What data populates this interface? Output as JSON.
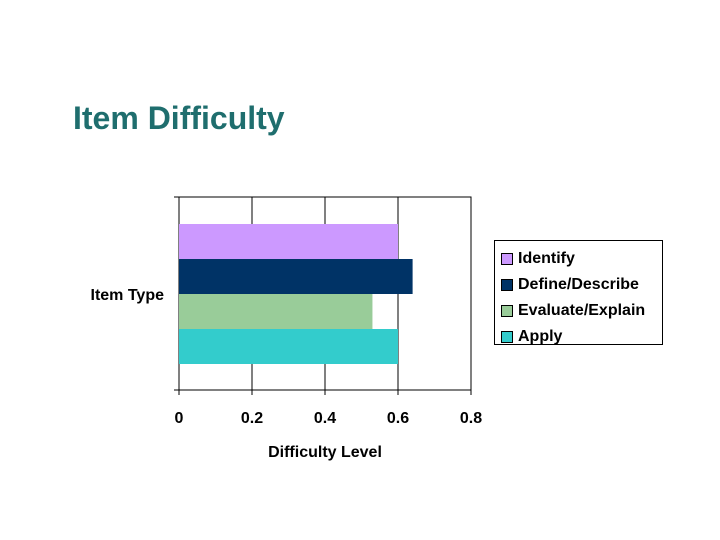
{
  "slide": {
    "title": "Item Difficulty"
  },
  "chart_data": {
    "type": "bar",
    "orientation": "horizontal",
    "categories": [
      "Item Type"
    ],
    "series": [
      {
        "name": "Identify",
        "values": [
          0.6
        ],
        "color": "#cc99ff"
      },
      {
        "name": "Define/Describe",
        "values": [
          0.64
        ],
        "color": "#003366"
      },
      {
        "name": "Evaluate/Explain",
        "values": [
          0.53
        ],
        "color": "#99cc99"
      },
      {
        "name": "Apply",
        "values": [
          0.6
        ],
        "color": "#33cccc"
      }
    ],
    "xlabel": "Difficulty Level",
    "ylabel": "",
    "xlim": [
      0,
      0.8
    ],
    "x_ticks": [
      "0",
      "0.2",
      "0.4",
      "0.6",
      "0.8"
    ],
    "grid": "vertical",
    "legend_position": "right"
  }
}
